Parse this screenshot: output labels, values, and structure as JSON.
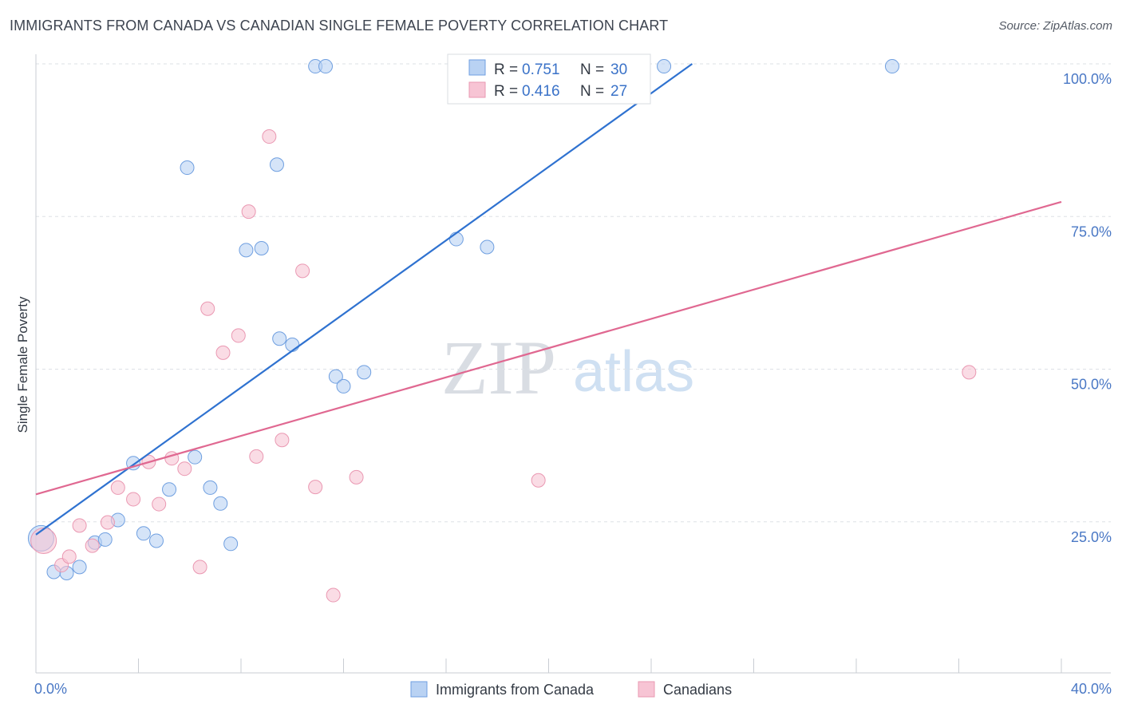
{
  "header": {
    "title": "IMMIGRANTS FROM CANADA VS CANADIAN SINGLE FEMALE POVERTY CORRELATION CHART",
    "source": "Source: ZipAtlas.com"
  },
  "watermark": {
    "zip": "ZIP",
    "atlas": "atlas"
  },
  "chart_data": {
    "type": "scatter",
    "title": "IMMIGRANTS FROM CANADA VS CANADIAN SINGLE FEMALE POVERTY CORRELATION CHART",
    "xlabel": "",
    "ylabel": "Single Female Poverty",
    "xlim": [
      0,
      40
    ],
    "ylim": [
      0,
      100
    ],
    "x_ticks": [
      0,
      4,
      8,
      12,
      16,
      20,
      24,
      28,
      32,
      36,
      40
    ],
    "x_tick_labels": {
      "0": "0.0%",
      "40": "40.0%"
    },
    "y_ticks": [
      25,
      50,
      75,
      100
    ],
    "y_tick_labels": [
      "25.0%",
      "50.0%",
      "75.0%",
      "100.0%"
    ],
    "grid": true,
    "legend_position": "top-center",
    "series": [
      {
        "name": "Immigrants from Canada",
        "color": "#6f9fe0",
        "fill": "#b9d2f3",
        "line_color": "#2f72d0",
        "R": "0.751",
        "N": "30",
        "trend": {
          "x": [
            0,
            25.6
          ],
          "y": [
            22.9,
            100
          ]
        },
        "points": [
          [
            0.2,
            22.3
          ],
          [
            0.7,
            16.8
          ],
          [
            1.2,
            16.6
          ],
          [
            1.7,
            17.6
          ],
          [
            2.3,
            21.6
          ],
          [
            2.7,
            22.1
          ],
          [
            3.2,
            25.3
          ],
          [
            3.8,
            34.6
          ],
          [
            4.2,
            23.1
          ],
          [
            4.7,
            21.9
          ],
          [
            5.2,
            30.3
          ],
          [
            5.9,
            83.0
          ],
          [
            6.2,
            35.6
          ],
          [
            6.8,
            30.6
          ],
          [
            7.2,
            28.0
          ],
          [
            7.6,
            21.4
          ],
          [
            8.2,
            69.5
          ],
          [
            8.8,
            69.8
          ],
          [
            9.4,
            83.5
          ],
          [
            9.5,
            55.0
          ],
          [
            10.0,
            54.0
          ],
          [
            10.9,
            99.6
          ],
          [
            11.3,
            99.6
          ],
          [
            11.7,
            48.8
          ],
          [
            12.0,
            47.2
          ],
          [
            12.8,
            49.5
          ],
          [
            16.4,
            71.3
          ],
          [
            17.6,
            70.0
          ],
          [
            24.5,
            99.6
          ],
          [
            33.4,
            99.6
          ]
        ]
      },
      {
        "name": "Canadians",
        "color": "#ea98b2",
        "fill": "#f7c4d4",
        "line_color": "#e06891",
        "R": "0.416",
        "N": "27",
        "trend": {
          "x": [
            0,
            40
          ],
          "y": [
            29.5,
            77.4
          ]
        },
        "points": [
          [
            0.3,
            21.9
          ],
          [
            1.0,
            17.9
          ],
          [
            1.3,
            19.3
          ],
          [
            1.7,
            24.4
          ],
          [
            2.2,
            21.1
          ],
          [
            2.8,
            24.9
          ],
          [
            3.2,
            30.6
          ],
          [
            3.8,
            28.7
          ],
          [
            4.4,
            34.8
          ],
          [
            4.8,
            27.9
          ],
          [
            5.3,
            35.4
          ],
          [
            5.8,
            33.7
          ],
          [
            6.4,
            17.6
          ],
          [
            6.7,
            59.9
          ],
          [
            7.3,
            52.7
          ],
          [
            7.9,
            55.5
          ],
          [
            8.3,
            75.8
          ],
          [
            8.6,
            35.7
          ],
          [
            9.1,
            88.1
          ],
          [
            9.6,
            38.4
          ],
          [
            10.4,
            66.1
          ],
          [
            10.9,
            30.7
          ],
          [
            11.6,
            13.0
          ],
          [
            12.5,
            32.3
          ],
          [
            19.6,
            31.8
          ],
          [
            20.8,
            99.6
          ],
          [
            36.4,
            49.5
          ]
        ]
      }
    ]
  },
  "legend": {
    "r_label": "R =",
    "n_label": "N =",
    "items": [
      {
        "r": "0.751",
        "n": "30"
      },
      {
        "r": "0.416",
        "n": "27"
      }
    ]
  },
  "bottom_legend": [
    {
      "label": "Immigrants from Canada"
    },
    {
      "label": "Canadians"
    }
  ]
}
